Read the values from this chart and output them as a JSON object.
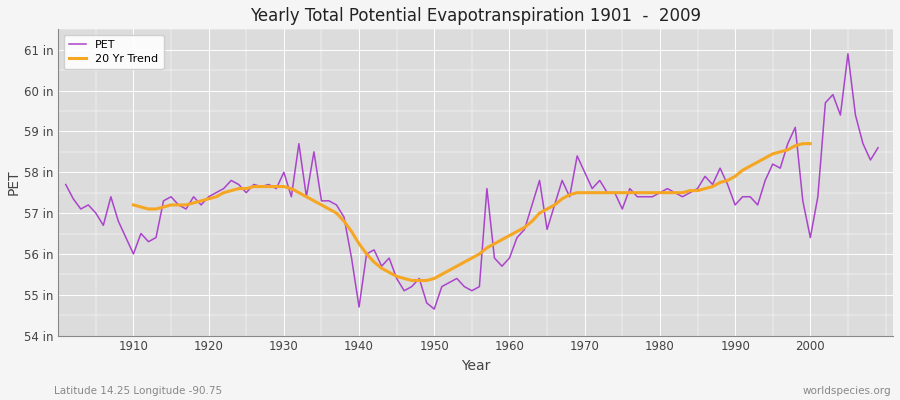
{
  "title": "Yearly Total Potential Evapotranspiration 1901  -  2009",
  "xlabel": "Year",
  "ylabel": "PET",
  "footnote_left": "Latitude 14.25 Longitude -90.75",
  "footnote_right": "worldspecies.org",
  "pet_color": "#aa44cc",
  "trend_color": "#f5a623",
  "plot_bg_color": "#dcdcdc",
  "fig_bg_color": "#f5f5f5",
  "grid_color": "#ffffff",
  "ylim": [
    54,
    61.5
  ],
  "yticks": [
    54,
    55,
    56,
    57,
    58,
    59,
    60,
    61
  ],
  "ytick_labels": [
    "54 in",
    "55 in",
    "56 in",
    "57 in",
    "58 in",
    "59 in",
    "60 in",
    "61 in"
  ],
  "xlim": [
    1900,
    2011
  ],
  "xticks": [
    1910,
    1920,
    1930,
    1940,
    1950,
    1960,
    1970,
    1980,
    1990,
    2000
  ],
  "legend_pet": "PET",
  "legend_trend": "20 Yr Trend",
  "years": [
    1901,
    1902,
    1903,
    1904,
    1905,
    1906,
    1907,
    1908,
    1909,
    1910,
    1911,
    1912,
    1913,
    1914,
    1915,
    1916,
    1917,
    1918,
    1919,
    1920,
    1921,
    1922,
    1923,
    1924,
    1925,
    1926,
    1927,
    1928,
    1929,
    1930,
    1931,
    1932,
    1933,
    1934,
    1935,
    1936,
    1937,
    1938,
    1939,
    1940,
    1941,
    1942,
    1943,
    1944,
    1945,
    1946,
    1947,
    1948,
    1949,
    1950,
    1951,
    1952,
    1953,
    1954,
    1955,
    1956,
    1957,
    1958,
    1959,
    1960,
    1961,
    1962,
    1963,
    1964,
    1965,
    1966,
    1967,
    1968,
    1969,
    1970,
    1971,
    1972,
    1973,
    1974,
    1975,
    1976,
    1977,
    1978,
    1979,
    1980,
    1981,
    1982,
    1983,
    1984,
    1985,
    1986,
    1987,
    1988,
    1989,
    1990,
    1991,
    1992,
    1993,
    1994,
    1995,
    1996,
    1997,
    1998,
    1999,
    2000,
    2001,
    2002,
    2003,
    2004,
    2005,
    2006,
    2007,
    2008,
    2009
  ],
  "pet_values": [
    57.7,
    57.35,
    57.1,
    57.2,
    57.0,
    56.7,
    57.4,
    56.8,
    56.4,
    56.0,
    56.5,
    56.3,
    56.4,
    57.3,
    57.4,
    57.2,
    57.1,
    57.4,
    57.2,
    57.4,
    57.5,
    57.6,
    57.8,
    57.7,
    57.5,
    57.7,
    57.65,
    57.7,
    57.6,
    58.0,
    57.4,
    58.7,
    57.4,
    58.5,
    57.3,
    57.3,
    57.2,
    56.9,
    55.9,
    54.7,
    56.0,
    56.1,
    55.7,
    55.9,
    55.4,
    55.1,
    55.2,
    55.4,
    54.8,
    54.65,
    55.2,
    55.3,
    55.4,
    55.2,
    55.1,
    55.2,
    57.6,
    55.9,
    55.7,
    55.9,
    56.4,
    56.6,
    57.2,
    57.8,
    56.6,
    57.2,
    57.8,
    57.4,
    58.4,
    58.0,
    57.6,
    57.8,
    57.5,
    57.5,
    57.1,
    57.6,
    57.4,
    57.4,
    57.4,
    57.5,
    57.6,
    57.5,
    57.4,
    57.5,
    57.6,
    57.9,
    57.7,
    58.1,
    57.7,
    57.2,
    57.4,
    57.4,
    57.2,
    57.8,
    58.2,
    58.1,
    58.7,
    59.1,
    57.3,
    56.4,
    57.4,
    59.7,
    59.9,
    59.4,
    60.9,
    59.4,
    58.7,
    58.3,
    58.6
  ],
  "trend_years": [
    1910,
    1911,
    1912,
    1913,
    1914,
    1915,
    1916,
    1917,
    1918,
    1919,
    1920,
    1921,
    1922,
    1923,
    1924,
    1925,
    1926,
    1927,
    1928,
    1929,
    1930,
    1931,
    1932,
    1933,
    1934,
    1935,
    1936,
    1937,
    1938,
    1939,
    1940,
    1941,
    1942,
    1943,
    1944,
    1945,
    1946,
    1947,
    1948,
    1949,
    1950,
    1951,
    1952,
    1953,
    1954,
    1955,
    1956,
    1957,
    1958,
    1959,
    1960,
    1961,
    1962,
    1963,
    1964,
    1965,
    1966,
    1967,
    1968,
    1969,
    1970,
    1971,
    1972,
    1973,
    1974,
    1975,
    1976,
    1977,
    1978,
    1979,
    1980,
    1981,
    1982,
    1983,
    1984,
    1985,
    1986,
    1987,
    1988,
    1989,
    1990,
    1991,
    1992,
    1993,
    1994,
    1995,
    1996,
    1997,
    1998,
    1999,
    2000
  ],
  "trend_values": [
    57.2,
    57.15,
    57.1,
    57.1,
    57.15,
    57.2,
    57.2,
    57.2,
    57.25,
    57.3,
    57.35,
    57.4,
    57.5,
    57.55,
    57.6,
    57.6,
    57.65,
    57.65,
    57.65,
    57.65,
    57.65,
    57.6,
    57.5,
    57.4,
    57.3,
    57.2,
    57.1,
    57.0,
    56.8,
    56.55,
    56.25,
    56.0,
    55.8,
    55.65,
    55.55,
    55.45,
    55.4,
    55.35,
    55.35,
    55.35,
    55.4,
    55.5,
    55.6,
    55.7,
    55.8,
    55.9,
    56.0,
    56.15,
    56.25,
    56.35,
    56.45,
    56.55,
    56.65,
    56.8,
    57.0,
    57.1,
    57.2,
    57.35,
    57.45,
    57.5,
    57.5,
    57.5,
    57.5,
    57.5,
    57.5,
    57.5,
    57.5,
    57.5,
    57.5,
    57.5,
    57.5,
    57.5,
    57.5,
    57.5,
    57.55,
    57.55,
    57.6,
    57.65,
    57.75,
    57.8,
    57.9,
    58.05,
    58.15,
    58.25,
    58.35,
    58.45,
    58.5,
    58.55,
    58.65,
    58.7,
    58.7
  ]
}
